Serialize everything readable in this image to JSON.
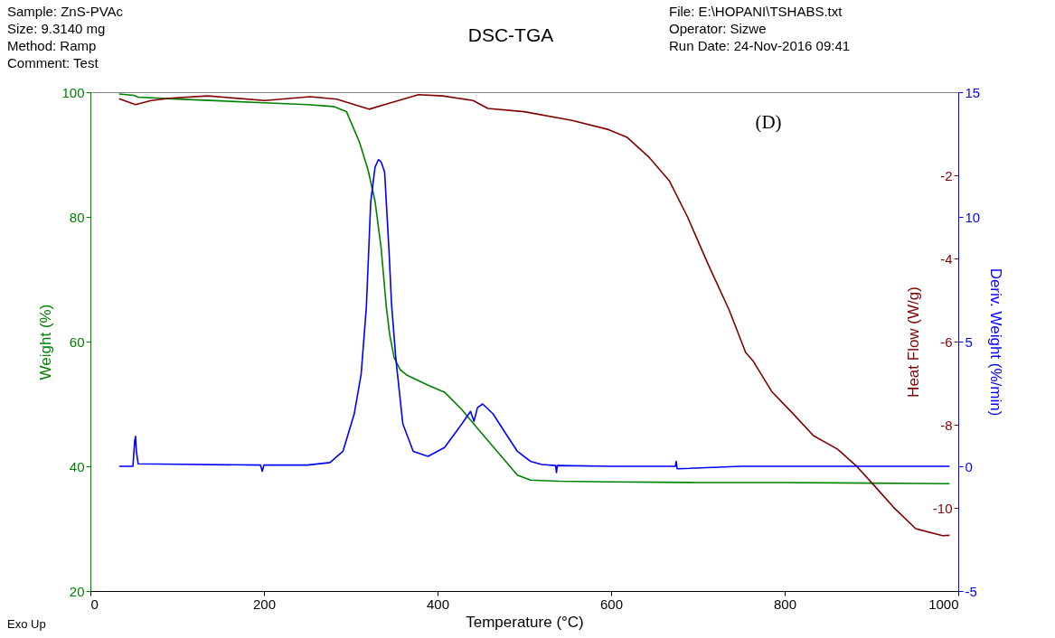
{
  "chart_data": {
    "type": "line",
    "title": "DSC-TGA",
    "xlabel": "Temperature (°C)",
    "ylabel": "Weight (%)",
    "y2label": "Heat Flow (W/g)",
    "y3label": "Deriv. Weight (%/min)",
    "xlim": [
      0,
      1000
    ],
    "xticks": [
      0,
      200,
      400,
      600,
      800,
      1000
    ],
    "ylim": [
      20,
      100
    ],
    "yticks": [
      20,
      40,
      60,
      80,
      100
    ],
    "y2lim": [
      -12,
      0
    ],
    "y2ticks": [
      -2,
      -4,
      -6,
      -8,
      -10
    ],
    "y3lim": [
      -5,
      15
    ],
    "y3ticks": [
      -5,
      0,
      5,
      10,
      15
    ],
    "grid": false,
    "annotations": [
      "Sample: ZnS-PVAc",
      "Size:  9.3140 mg",
      "Method: Ramp",
      "Comment: Test",
      "File: E:\\HOPANI\\TSHABS.txt",
      "Operator: Sizwe",
      "Run Date: 24-Nov-2016 09:41",
      "Exo Up",
      "(D)"
    ],
    "series": [
      {
        "color": "#008000",
        "axis": "y",
        "x": [
          33,
          50,
          55,
          100,
          150,
          200,
          250,
          280,
          295,
          310,
          320,
          328,
          335,
          341,
          345,
          350,
          357,
          365,
          389,
          408,
          428,
          444,
          468,
          492,
          507,
          540,
          600,
          700,
          800,
          900,
          990
        ],
        "values": [
          99.7,
          99.5,
          99.2,
          98.9,
          98.6,
          98.3,
          98.0,
          97.7,
          96.9,
          92,
          87.5,
          82.5,
          75,
          65.5,
          61,
          57.4,
          55.5,
          54.6,
          53.0,
          51.9,
          49.1,
          46.4,
          42.5,
          38.6,
          37.8,
          37.6,
          37.5,
          37.4,
          37.4,
          37.3,
          37.2
        ]
      },
      {
        "color": "#800000",
        "axis": "y2",
        "x": [
          33,
          52,
          70,
          94,
          135,
          201,
          253,
          284,
          321,
          347,
          378,
          406,
          441,
          458,
          500,
          555,
          597,
          618,
          643,
          667,
          688,
          712,
          736,
          755,
          764,
          785,
          809,
          833,
          861,
          882,
          903,
          927,
          951,
          982,
          990
        ],
        "values": [
          -0.16,
          -0.3,
          -0.2,
          -0.14,
          -0.09,
          -0.2,
          -0.11,
          -0.17,
          -0.41,
          -0.25,
          -0.06,
          -0.09,
          -0.2,
          -0.39,
          -0.47,
          -0.68,
          -0.9,
          -1.08,
          -1.55,
          -2.13,
          -3.0,
          -4.15,
          -5.24,
          -6.26,
          -6.48,
          -7.2,
          -7.72,
          -8.26,
          -8.59,
          -8.98,
          -9.46,
          -10.02,
          -10.5,
          -10.67,
          -10.66
        ]
      },
      {
        "color": "#0000ff",
        "axis": "y3",
        "x": [
          33,
          49,
          51,
          52,
          53,
          55,
          100,
          196,
          198,
          200,
          250,
          276,
          291,
          304,
          312,
          318,
          323,
          328,
          332,
          335,
          339,
          344,
          347,
          352,
          360,
          372,
          389,
          408,
          428,
          438,
          442,
          446,
          452,
          464,
          476,
          492,
          507,
          520,
          536,
          537,
          538,
          600,
          674,
          675,
          676,
          750,
          850,
          990
        ],
        "values": [
          0.0,
          0.0,
          1.0,
          1.2,
          0.6,
          0.1,
          0.08,
          0.05,
          -0.2,
          0.05,
          0.05,
          0.15,
          0.6,
          2.1,
          3.7,
          6.4,
          10.6,
          12.0,
          12.3,
          12.2,
          11.8,
          8.7,
          6.5,
          4.3,
          1.7,
          0.6,
          0.4,
          0.75,
          1.7,
          2.2,
          1.8,
          2.35,
          2.5,
          2.1,
          1.45,
          0.6,
          0.2,
          0.07,
          0.03,
          -0.25,
          0.03,
          0.0,
          0.0,
          0.2,
          -0.1,
          0.0,
          0.0,
          0.0
        ]
      }
    ]
  }
}
